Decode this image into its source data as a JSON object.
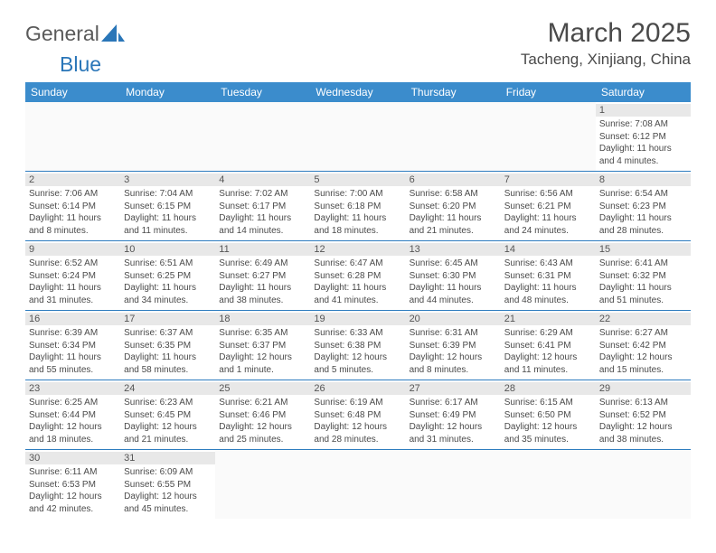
{
  "logo": {
    "text1": "General",
    "text2": "Blue"
  },
  "title": "March 2025",
  "location": "Tacheng, Xinjiang, China",
  "colors": {
    "header_bg": "#3b8ccc",
    "header_text": "#ffffff",
    "row_border": "#2d7cbf",
    "daynum_bg": "#e8e8e8",
    "body_text": "#4a4a4a",
    "logo_accent": "#2a76b8"
  },
  "weekdays": [
    "Sunday",
    "Monday",
    "Tuesday",
    "Wednesday",
    "Thursday",
    "Friday",
    "Saturday"
  ],
  "weeks": [
    [
      null,
      null,
      null,
      null,
      null,
      null,
      {
        "n": "1",
        "sr": "7:08 AM",
        "ss": "6:12 PM",
        "dl": "11 hours and 4 minutes."
      }
    ],
    [
      {
        "n": "2",
        "sr": "7:06 AM",
        "ss": "6:14 PM",
        "dl": "11 hours and 8 minutes."
      },
      {
        "n": "3",
        "sr": "7:04 AM",
        "ss": "6:15 PM",
        "dl": "11 hours and 11 minutes."
      },
      {
        "n": "4",
        "sr": "7:02 AM",
        "ss": "6:17 PM",
        "dl": "11 hours and 14 minutes."
      },
      {
        "n": "5",
        "sr": "7:00 AM",
        "ss": "6:18 PM",
        "dl": "11 hours and 18 minutes."
      },
      {
        "n": "6",
        "sr": "6:58 AM",
        "ss": "6:20 PM",
        "dl": "11 hours and 21 minutes."
      },
      {
        "n": "7",
        "sr": "6:56 AM",
        "ss": "6:21 PM",
        "dl": "11 hours and 24 minutes."
      },
      {
        "n": "8",
        "sr": "6:54 AM",
        "ss": "6:23 PM",
        "dl": "11 hours and 28 minutes."
      }
    ],
    [
      {
        "n": "9",
        "sr": "6:52 AM",
        "ss": "6:24 PM",
        "dl": "11 hours and 31 minutes."
      },
      {
        "n": "10",
        "sr": "6:51 AM",
        "ss": "6:25 PM",
        "dl": "11 hours and 34 minutes."
      },
      {
        "n": "11",
        "sr": "6:49 AM",
        "ss": "6:27 PM",
        "dl": "11 hours and 38 minutes."
      },
      {
        "n": "12",
        "sr": "6:47 AM",
        "ss": "6:28 PM",
        "dl": "11 hours and 41 minutes."
      },
      {
        "n": "13",
        "sr": "6:45 AM",
        "ss": "6:30 PM",
        "dl": "11 hours and 44 minutes."
      },
      {
        "n": "14",
        "sr": "6:43 AM",
        "ss": "6:31 PM",
        "dl": "11 hours and 48 minutes."
      },
      {
        "n": "15",
        "sr": "6:41 AM",
        "ss": "6:32 PM",
        "dl": "11 hours and 51 minutes."
      }
    ],
    [
      {
        "n": "16",
        "sr": "6:39 AM",
        "ss": "6:34 PM",
        "dl": "11 hours and 55 minutes."
      },
      {
        "n": "17",
        "sr": "6:37 AM",
        "ss": "6:35 PM",
        "dl": "11 hours and 58 minutes."
      },
      {
        "n": "18",
        "sr": "6:35 AM",
        "ss": "6:37 PM",
        "dl": "12 hours and 1 minute."
      },
      {
        "n": "19",
        "sr": "6:33 AM",
        "ss": "6:38 PM",
        "dl": "12 hours and 5 minutes."
      },
      {
        "n": "20",
        "sr": "6:31 AM",
        "ss": "6:39 PM",
        "dl": "12 hours and 8 minutes."
      },
      {
        "n": "21",
        "sr": "6:29 AM",
        "ss": "6:41 PM",
        "dl": "12 hours and 11 minutes."
      },
      {
        "n": "22",
        "sr": "6:27 AM",
        "ss": "6:42 PM",
        "dl": "12 hours and 15 minutes."
      }
    ],
    [
      {
        "n": "23",
        "sr": "6:25 AM",
        "ss": "6:44 PM",
        "dl": "12 hours and 18 minutes."
      },
      {
        "n": "24",
        "sr": "6:23 AM",
        "ss": "6:45 PM",
        "dl": "12 hours and 21 minutes."
      },
      {
        "n": "25",
        "sr": "6:21 AM",
        "ss": "6:46 PM",
        "dl": "12 hours and 25 minutes."
      },
      {
        "n": "26",
        "sr": "6:19 AM",
        "ss": "6:48 PM",
        "dl": "12 hours and 28 minutes."
      },
      {
        "n": "27",
        "sr": "6:17 AM",
        "ss": "6:49 PM",
        "dl": "12 hours and 31 minutes."
      },
      {
        "n": "28",
        "sr": "6:15 AM",
        "ss": "6:50 PM",
        "dl": "12 hours and 35 minutes."
      },
      {
        "n": "29",
        "sr": "6:13 AM",
        "ss": "6:52 PM",
        "dl": "12 hours and 38 minutes."
      }
    ],
    [
      {
        "n": "30",
        "sr": "6:11 AM",
        "ss": "6:53 PM",
        "dl": "12 hours and 42 minutes."
      },
      {
        "n": "31",
        "sr": "6:09 AM",
        "ss": "6:55 PM",
        "dl": "12 hours and 45 minutes."
      },
      null,
      null,
      null,
      null,
      null
    ]
  ],
  "labels": {
    "sunrise": "Sunrise: ",
    "sunset": "Sunset: ",
    "daylight": "Daylight: "
  }
}
